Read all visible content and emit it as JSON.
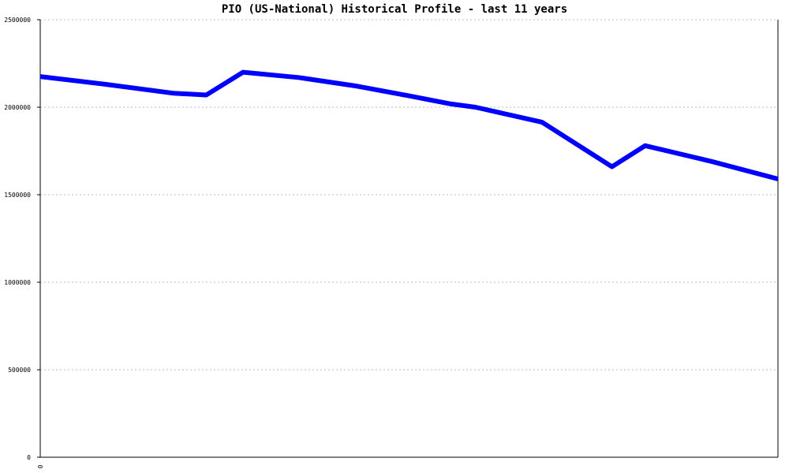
{
  "chart_data": {
    "type": "line",
    "title": "PIO (US-National) Historical Profile - last 11 years",
    "xlabel": "",
    "ylabel": "",
    "x_tick_labels": [
      "0"
    ],
    "y_ticks": [
      0,
      500000,
      1000000,
      1500000,
      2000000,
      2500000
    ],
    "y_tick_labels": [
      "0",
      "500000",
      "1000000",
      "1500000",
      "2000000",
      "2500000"
    ],
    "ylim": [
      0,
      2500000
    ],
    "xlim": [
      0,
      1
    ],
    "grid": true,
    "series": [
      {
        "name": "",
        "color": "#0000ff",
        "x": [
          0,
          0.09,
          0.18,
          0.225,
          0.275,
          0.35,
          0.43,
          0.5,
          0.555,
          0.59,
          0.68,
          0.775,
          0.82,
          0.91,
          1.0
        ],
        "values": [
          2175000,
          2130000,
          2080000,
          2070000,
          2200000,
          2170000,
          2120000,
          2065000,
          2020000,
          2000000,
          1915000,
          1660000,
          1780000,
          1690000,
          1590000
        ]
      }
    ]
  }
}
